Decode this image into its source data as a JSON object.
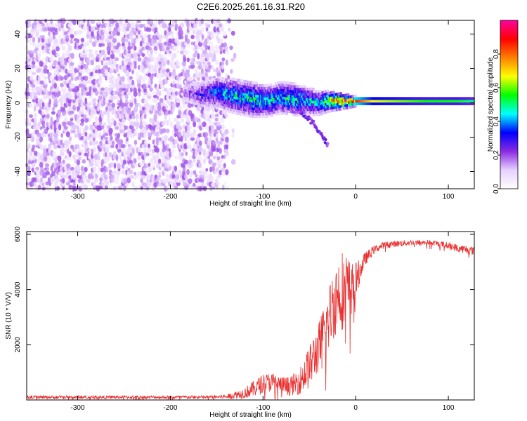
{
  "figure_title": "C2E6.2025.261.16.31.R20",
  "chart_data": [
    {
      "type": "heatmap",
      "title": "C2E6.2025.261.16.31.R20",
      "xlabel": "Height of straight line (km)",
      "ylabel": "Frequency (Hz)",
      "xlim": [
        -355,
        128
      ],
      "ylim": [
        -50,
        48
      ],
      "xticks": [
        -300,
        -200,
        -100,
        0,
        100
      ],
      "xtick_labels": [
        "-300",
        "-200",
        "-100",
        "0",
        "100"
      ],
      "yticks": [
        -40,
        -20,
        0,
        20,
        40
      ],
      "ytick_labels": [
        "-40",
        "-20",
        "0",
        "20",
        "40"
      ],
      "colorbar": {
        "label": "Normalized spectral amplitude",
        "range": [
          0,
          1
        ],
        "ticks": [
          0.0,
          0.2,
          0.4,
          0.6,
          0.8
        ],
        "tick_labels": [
          "0.0",
          "0.2",
          "0.4",
          "0.6",
          "0.8"
        ],
        "colormap": [
          "#ffffff",
          "#e6d0ff",
          "#8a2be2",
          "#0000ff",
          "#00ffff",
          "#00ff00",
          "#ffff00",
          "#ff8000",
          "#ff0000",
          "#ff00a0"
        ]
      },
      "noise_region": {
        "x_range": [
          -355,
          -130
        ],
        "f_range": [
          -50,
          48
        ],
        "level": 0.12
      },
      "signal_trace": {
        "x": [
          -185,
          -165,
          -150,
          -130,
          -110,
          -95,
          -80,
          -65,
          -50,
          -40,
          -30,
          -20,
          -10,
          0,
          20,
          50,
          80,
          110,
          128
        ],
        "freq": [
          6,
          5,
          6,
          4,
          2,
          1,
          3,
          2,
          1,
          0,
          1,
          1,
          1,
          1,
          1,
          1,
          1,
          1,
          1
        ],
        "width": [
          6,
          8,
          9,
          10,
          10,
          9,
          9,
          9,
          8,
          7,
          6,
          5,
          4,
          3,
          3,
          3,
          3,
          3,
          3
        ],
        "level": [
          0.2,
          0.3,
          0.4,
          0.45,
          0.5,
          0.45,
          0.45,
          0.5,
          0.45,
          0.45,
          0.6,
          0.8,
          0.85,
          0.8,
          0.6,
          0.55,
          0.5,
          0.5,
          0.45
        ]
      },
      "tail": {
        "x": [
          -60,
          -45,
          -35,
          -30
        ],
        "freq": [
          -5,
          -12,
          -20,
          -25
        ]
      }
    },
    {
      "type": "line",
      "title": "",
      "xlabel": "Height of straight line (km)",
      "ylabel": "SNR (10 * V/V)",
      "xlim": [
        -355,
        128
      ],
      "ylim": [
        0,
        6100
      ],
      "xticks": [
        -300,
        -200,
        -100,
        0,
        100
      ],
      "xtick_labels": [
        "-300",
        "-200",
        "-100",
        "0",
        "100"
      ],
      "yticks": [
        2000,
        4000,
        6000
      ],
      "ytick_labels": [
        "2000",
        "4000",
        "6000"
      ],
      "color": "#e83030",
      "series": [
        {
          "name": "SNR",
          "x": [
            -355,
            -300,
            -250,
            -200,
            -160,
            -140,
            -120,
            -110,
            -100,
            -90,
            -80,
            -70,
            -60,
            -50,
            -40,
            -30,
            -25,
            -20,
            -15,
            -10,
            -5,
            0,
            5,
            10,
            20,
            30,
            40,
            60,
            80,
            100,
            110,
            128
          ],
          "y": [
            100,
            100,
            100,
            100,
            100,
            120,
            250,
            400,
            600,
            650,
            550,
            500,
            700,
            1200,
            1900,
            2800,
            3400,
            3800,
            4000,
            4050,
            4000,
            4300,
            4700,
            5100,
            5450,
            5600,
            5650,
            5700,
            5700,
            5600,
            5500,
            5400
          ],
          "noise": [
            60,
            60,
            60,
            60,
            60,
            80,
            200,
            300,
            350,
            350,
            300,
            350,
            500,
            800,
            900,
            1200,
            1300,
            1400,
            1500,
            1300,
            1000,
            700,
            400,
            250,
            150,
            120,
            120,
            100,
            100,
            120,
            150,
            150
          ]
        }
      ]
    }
  ]
}
